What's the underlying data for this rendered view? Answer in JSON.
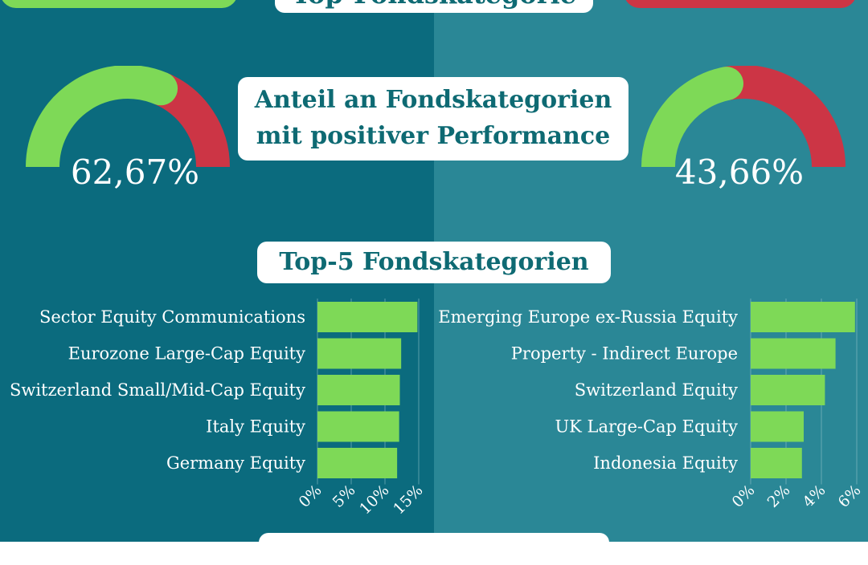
{
  "colors": {
    "left_bg": "#0b6b7e",
    "right_bg": "#2a8796",
    "positive": "#7ed957",
    "negative": "#cc3545",
    "pill_text": "#0e6a73",
    "bar": "#7ed957"
  },
  "header": {
    "partial_title": "Top-Fondskategorie"
  },
  "share_section": {
    "title_line1": "Anteil an Fondskategorien",
    "title_line2": "mit positiver Performance",
    "left_gauge": {
      "positive_share": 0.6267,
      "label": "62,67%"
    },
    "right_gauge": {
      "positive_share": 0.4366,
      "label": "43,66%"
    }
  },
  "top5_section": {
    "title": "Top-5 Fondskategorien"
  },
  "chart_data": [
    {
      "type": "bar",
      "orientation": "horizontal",
      "categories": [
        "Sector Equity Communications",
        "Eurozone Large-Cap Equity",
        "Switzerland Small/Mid-Cap Equity",
        "Italy Equity",
        "Germany Equity"
      ],
      "values": [
        14.8,
        12.4,
        12.2,
        12.1,
        11.8
      ],
      "xlim": [
        0,
        15
      ],
      "xticks": [
        "0%",
        "5%",
        "10%",
        "15%"
      ],
      "grid": true
    },
    {
      "type": "bar",
      "orientation": "horizontal",
      "categories": [
        "Emerging Europe ex-Russia Equity",
        "Property - Indirect Europe",
        "Switzerland Equity",
        "UK Large-Cap Equity",
        "Indonesia Equity"
      ],
      "values": [
        5.9,
        4.8,
        4.2,
        3.0,
        2.9
      ],
      "xlim": [
        0,
        6
      ],
      "xticks": [
        "0%",
        "2%",
        "4%",
        "6%"
      ],
      "grid": true
    }
  ]
}
